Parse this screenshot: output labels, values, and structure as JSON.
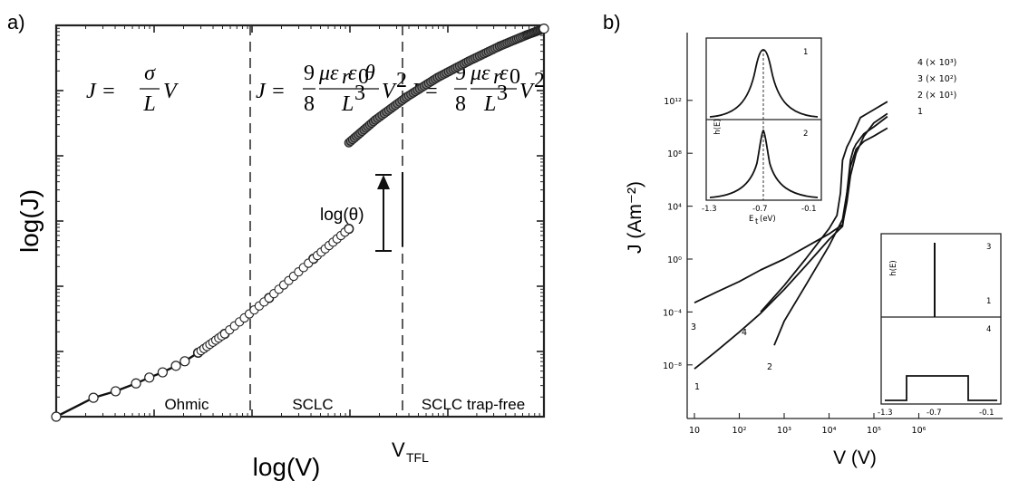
{
  "panel_a": {
    "letter": "a)",
    "formulas": {
      "ohmic": {
        "lhs": "J = ",
        "num": "σ",
        "den": "L",
        "tail": "V"
      },
      "sclc": {
        "lhs": "J = ",
        "coef_num": "9",
        "coef_den": "8",
        "num": "με",
        "num_r": "r",
        "num_mid": "ε",
        "num_0": "0",
        "num_theta": " θ",
        "den": "L",
        "den_exp": "3",
        "tail": "V",
        "tail_exp": "2"
      },
      "trapfree": {
        "lhs": "J = ",
        "coef_num": "9",
        "coef_den": "8",
        "num": "με",
        "num_r": "r",
        "num_mid": "ε",
        "num_0": "0",
        "den": "L",
        "den_exp": "3",
        "tail": "V",
        "tail_exp": "2"
      }
    },
    "theta_label": "log(θ)",
    "v_tfl_main": "V",
    "v_tfl_sub": "TFL"
  },
  "panel_b": {
    "letter": "b)",
    "inset_top": {
      "ylabel": "h(E)",
      "xlabel": "E",
      "xlabel_sub": "t",
      "xlabel_unit": "(eV)",
      "xticks": [
        "-1.3",
        "-0.7",
        "-0.1"
      ],
      "curve_labels": [
        "1",
        "2"
      ]
    },
    "inset_bottom": {
      "ylabel": "h(E)",
      "xticks": [
        "-1.3",
        "-0.7",
        "-0.1"
      ],
      "curve_labels": [
        "3",
        "1",
        "4"
      ]
    },
    "curve_end_labels": [
      "3",
      "4",
      "2",
      "1"
    ],
    "curve_top_labels": [
      "4 (× 10³)",
      "3 (× 10²)",
      "2 (× 10¹)",
      "1"
    ]
  },
  "chart_data": [
    {
      "type": "scatter",
      "title": "",
      "xlabel": "log(V)",
      "ylabel": "log(J)",
      "x_scale": "log",
      "y_scale": "log",
      "grid": false,
      "regions": [
        "Ohmic",
        "SCLC",
        "SCLC trap-free"
      ],
      "annotations": [
        "log(θ)",
        "V_TFL"
      ],
      "series": [
        {
          "values": [
            [
              0.0,
              0.0
            ],
            [
              0.42,
              0.29
            ],
            [
              0.67,
              0.39
            ],
            [
              0.9,
              0.51
            ],
            [
              1.05,
              0.6
            ],
            [
              1.2,
              0.68
            ],
            [
              1.35,
              0.78
            ],
            [
              1.45,
              0.85
            ],
            [
              1.6,
              0.98
            ],
            [
              1.9,
              1.27
            ],
            [
              2.4,
              1.82
            ],
            [
              2.9,
              2.42
            ],
            [
              3.3,
              2.88
            ]
          ]
        },
        {
          "values": [
            [
              3.3,
              4.2
            ],
            [
              3.6,
              4.55
            ],
            [
              3.95,
              4.9
            ],
            [
              4.3,
              5.2
            ],
            [
              4.65,
              5.45
            ],
            [
              5.0,
              5.68
            ],
            [
              5.3,
              5.85
            ],
            [
              5.5,
              5.95
            ]
          ]
        }
      ]
    },
    {
      "type": "line",
      "title": "",
      "xlabel": "V (V)",
      "ylabel": "J (Am⁻²)",
      "x_scale": "log",
      "y_scale": "log",
      "x_tick_labels": [
        "10",
        "10²",
        "10³",
        "10⁴",
        "10⁵",
        "10⁶"
      ],
      "y_tick_labels": [
        "10⁻⁸",
        "10⁻⁴",
        "10⁰",
        "10⁴",
        "10⁸",
        "10¹²"
      ],
      "xlim": [
        10,
        10000000
      ],
      "ylim": [
        1e-10,
        100000000000000.0
      ],
      "series": [
        {
          "name": "1",
          "x": [
            10,
            30,
            100,
            300,
            1000,
            3000,
            10000,
            20000,
            30000,
            40000,
            60000,
            100000,
            200000
          ],
          "y": [
            5e-09,
            1e-07,
            3e-06,
            8e-05,
            0.005,
            0.3,
            30,
            300,
            10000000,
            200000000,
            800000000,
            2000000000,
            8000000000
          ]
        },
        {
          "name": "2",
          "x": [
            600,
            1000,
            3000,
            10000,
            20000,
            25000,
            30000,
            35000,
            40000,
            60000,
            100000,
            200000
          ],
          "y": [
            3e-07,
            2e-05,
            0.01,
            10,
            1000,
            100000,
            30000000,
            200000000,
            500000000,
            3000000000,
            10000000000,
            60000000000
          ]
        },
        {
          "name": "3",
          "x": [
            10,
            30,
            100,
            300,
            1000,
            3000,
            10000,
            20000,
            25000,
            30000,
            40000,
            60000,
            100000,
            200000
          ],
          "y": [
            0.0005,
            0.003,
            0.02,
            0.15,
            1,
            8,
            80,
            400,
            20000,
            2000000,
            100000000,
            2000000000,
            20000000000,
            100000000000
          ]
        },
        {
          "name": "4",
          "x": [
            300,
            1000,
            3000,
            10000,
            15000,
            18000,
            20000,
            25000,
            30000,
            50000,
            100000,
            200000
          ],
          "y": [
            0.0001,
            0.01,
            1,
            200,
            2000,
            100000,
            30000000,
            300000000,
            1000000000,
            50000000000,
            200000000000,
            800000000000
          ]
        }
      ]
    }
  ]
}
